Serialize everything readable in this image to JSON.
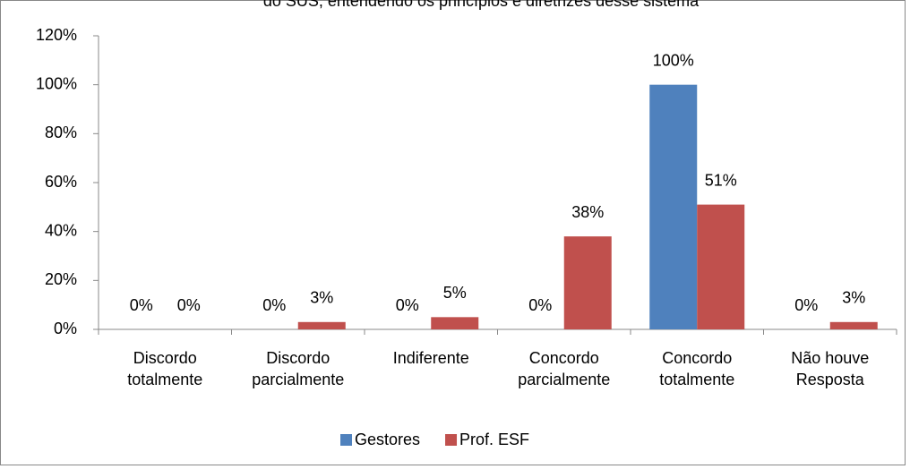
{
  "chart_data": {
    "type": "bar",
    "title": "do SUS, entendendo os princípios e diretrizes desse sistema",
    "categories": [
      "Discordo totalmente",
      "Discordo parcialmente",
      "Indiferente",
      "Concordo parcialmente",
      "Concordo totalmente",
      "Não houve Resposta"
    ],
    "series": [
      {
        "name": "Gestores",
        "color": "#4f81bd",
        "values": [
          0,
          0,
          0,
          0,
          100,
          0
        ],
        "value_labels": [
          "0%",
          "0%",
          "0%",
          "0%",
          "100%",
          "0%"
        ]
      },
      {
        "name": "Prof. ESF",
        "color": "#c0504d",
        "values": [
          0,
          3,
          5,
          38,
          51,
          3
        ],
        "value_labels": [
          "0%",
          "3%",
          "5%",
          "38%",
          "51%",
          "3%"
        ]
      }
    ],
    "ylim": [
      0,
      120
    ],
    "yticks": [
      {
        "value": 0,
        "label": "0%"
      },
      {
        "value": 20,
        "label": "20%"
      },
      {
        "value": 40,
        "label": "40%"
      },
      {
        "value": 60,
        "label": "60%"
      },
      {
        "value": 80,
        "label": "80%"
      },
      {
        "value": 100,
        "label": "100%"
      },
      {
        "value": 120,
        "label": "120%"
      }
    ],
    "legend": "bottom",
    "grid": false
  }
}
